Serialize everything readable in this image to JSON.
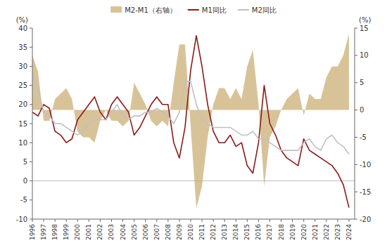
{
  "chart_data": {
    "type": "line",
    "title": "",
    "ylabel": "(%)",
    "y2label": "(%)",
    "x": [
      1996,
      1996.5,
      1997,
      1997.5,
      1998,
      1998.5,
      1999,
      1999.5,
      2000,
      2000.5,
      2001,
      2001.5,
      2002,
      2002.5,
      2003,
      2003.5,
      2004,
      2004.5,
      2005,
      2005.5,
      2006,
      2006.5,
      2007,
      2007.5,
      2008,
      2008.5,
      2009,
      2009.5,
      2010,
      2010.5,
      2011,
      2011.5,
      2012,
      2012.5,
      2013,
      2013.5,
      2014,
      2014.5,
      2015,
      2015.5,
      2016,
      2016.5,
      2017,
      2017.5,
      2018,
      2018.5,
      2019,
      2019.5,
      2020,
      2020.5,
      2021,
      2021.5,
      2022,
      2022.5,
      2023,
      2023.5,
      2024
    ],
    "xlim": [
      1996,
      2024.5
    ],
    "xticks": [
      1996,
      1997,
      1998,
      1999,
      2000,
      2001,
      2002,
      2003,
      2004,
      2005,
      2006,
      2007,
      2008,
      2009,
      2010,
      2011,
      2012,
      2013,
      2014,
      2015,
      2016,
      2017,
      2018,
      2019,
      2020,
      2021,
      2022,
      2023,
      2024
    ],
    "ylim": [
      -10,
      40
    ],
    "yticks": [
      -10,
      -5,
      0,
      5,
      10,
      15,
      20,
      25,
      30,
      35,
      40
    ],
    "y2lim": [
      -20,
      15
    ],
    "y2ticks": [
      -20,
      -15,
      -10,
      -5,
      0,
      5,
      10,
      15
    ],
    "grid": false,
    "legend": "top",
    "series": [
      {
        "name": "M2-M1（右轴）",
        "type": "area",
        "axis": "y2",
        "color": "#C8A96E",
        "values": [
          10,
          7,
          -2,
          -2,
          2,
          3,
          4,
          2,
          -4,
          -5,
          -5,
          -6,
          -2,
          0,
          -2,
          -2,
          -3,
          -2,
          5,
          3,
          1,
          -2,
          -3,
          -2,
          -3,
          5,
          12,
          12,
          -3,
          -18,
          -14,
          -5,
          1,
          4,
          4,
          2,
          4,
          2,
          8,
          11,
          1,
          -14,
          -5,
          -3,
          0,
          2,
          3,
          4,
          -1,
          3,
          2,
          2,
          6,
          8,
          8,
          10,
          14
        ]
      },
      {
        "name": "M1同比",
        "type": "line",
        "color": "#8B1A1A",
        "values": [
          18,
          17,
          20,
          19,
          13,
          12,
          10,
          11,
          16,
          18,
          20,
          22,
          18,
          16,
          20,
          22,
          20,
          18,
          12,
          14,
          17,
          20,
          22,
          20,
          20,
          10,
          6,
          14,
          29,
          38,
          30,
          20,
          13,
          10,
          10,
          12,
          9,
          10,
          4,
          2,
          10,
          25,
          15,
          12,
          8,
          6,
          5,
          4,
          11,
          8,
          7,
          6,
          5,
          4,
          2,
          -1,
          -7
        ]
      },
      {
        "name": "M2同比",
        "type": "line",
        "color": "#C0C0C0",
        "values": [
          28,
          24,
          18,
          17,
          15,
          15,
          14,
          13,
          12,
          13,
          15,
          16,
          16,
          16,
          18,
          20,
          17,
          16,
          17,
          17,
          18,
          18,
          19,
          18,
          17,
          15,
          18,
          26,
          26,
          20,
          16,
          15,
          14,
          14,
          14,
          14,
          13,
          12,
          12,
          13,
          11,
          11,
          10,
          9,
          8,
          8,
          8,
          8,
          10,
          11,
          9,
          8,
          11,
          12,
          10,
          9,
          7
        ]
      }
    ]
  }
}
